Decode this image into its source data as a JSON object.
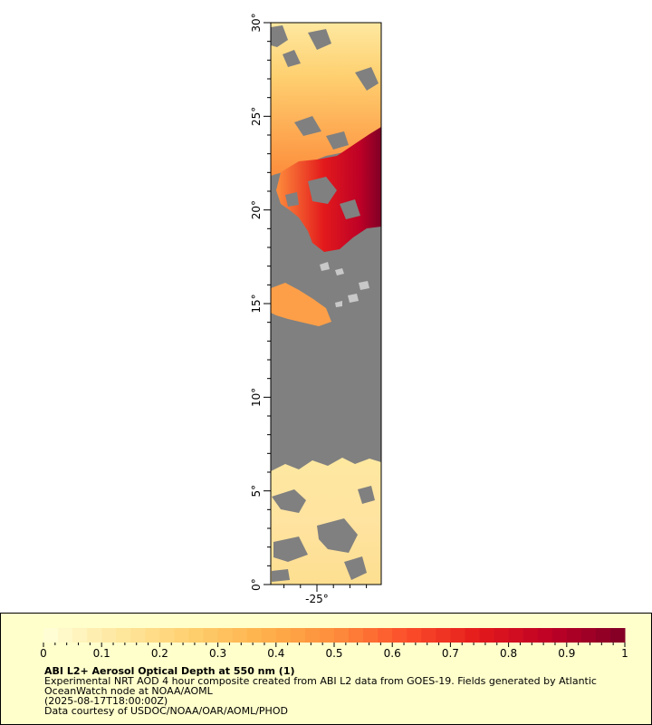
{
  "map": {
    "lat_ticks": [
      "0°",
      "5°",
      "10°",
      "15°",
      "20°",
      "25°",
      "30°"
    ],
    "lon_ticks": [
      "-25°"
    ],
    "lat_range": [
      0,
      30
    ],
    "lon_tick_values": [
      -25
    ],
    "colors": {
      "land_nodata": "#808080",
      "clear": "#c8c8c8",
      "frame": "#000000"
    }
  },
  "legend": {
    "title": "ABI L2+ Aerosol Optical Depth at 550 nm (1)",
    "line1": "Experimental NRT AOD 4 hour composite created from ABI L2 data from GOES-19. Fields generated by Atlantic",
    "line2": "OceanWatch node at NOAA/AOML",
    "line3": "(2025-08-17T18:00:00Z)",
    "line4": "Data courtesy of USDOC/NOAA/OAR/AOML/PHOD",
    "colorbar_ticks": [
      "0",
      "0.1",
      "0.2",
      "0.3",
      "0.4",
      "0.5",
      "0.6",
      "0.7",
      "0.8",
      "0.9",
      "1"
    ],
    "colorbar_range": [
      0,
      1
    ],
    "colorbar_stops": [
      "#ffffd9",
      "#fee8a0",
      "#fed070",
      "#feb24c",
      "#fd8d3c",
      "#fc4e2a",
      "#e31a1c",
      "#bd0026",
      "#800026"
    ]
  }
}
